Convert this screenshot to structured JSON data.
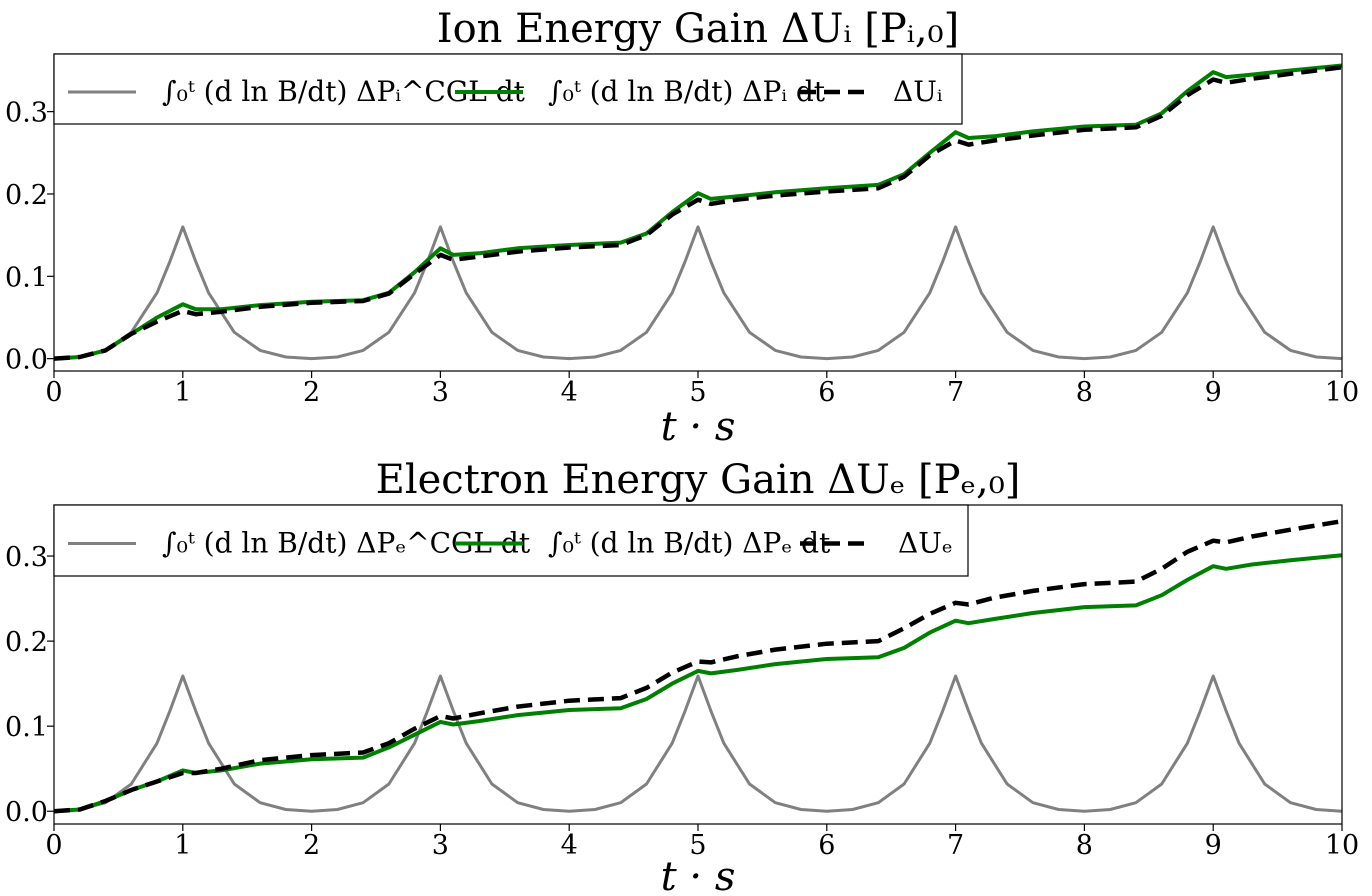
{
  "chart_data": [
    {
      "type": "line",
      "title": "Ion Energy Gain ΔUᵢ [Pᵢ,₀]",
      "xlabel": "t · s",
      "ylabel": "",
      "xlim": [
        0,
        10
      ],
      "ylim": [
        -0.015,
        0.37
      ],
      "xticks": [
        "0",
        "1",
        "2",
        "3",
        "4",
        "5",
        "6",
        "7",
        "8",
        "9",
        "10"
      ],
      "yticks": [
        "0.0",
        "0.1",
        "0.2",
        "0.3"
      ],
      "grid": false,
      "legend_position": "top-left",
      "series": [
        {
          "name": "∫₀ᵗ (d ln B/dt) ΔPᵢ^CGL dt",
          "color": "#808080",
          "style": "solid",
          "x": [
            0,
            0.2,
            0.4,
            0.6,
            0.8,
            0.9,
            1.0,
            1.1,
            1.2,
            1.4,
            1.6,
            1.8,
            2.0,
            2.2,
            2.4,
            2.6,
            2.8,
            2.9,
            3.0,
            3.1,
            3.2,
            3.4,
            3.6,
            3.8,
            4.0,
            4.2,
            4.4,
            4.6,
            4.8,
            4.9,
            5.0,
            5.1,
            5.2,
            5.4,
            5.6,
            5.8,
            6.0,
            6.2,
            6.4,
            6.6,
            6.8,
            6.9,
            7.0,
            7.1,
            7.2,
            7.4,
            7.6,
            7.8,
            8.0,
            8.2,
            8.4,
            8.6,
            8.8,
            8.9,
            9.0,
            9.1,
            9.2,
            9.4,
            9.6,
            9.8,
            10.0
          ],
          "y": [
            0.0,
            0.002,
            0.01,
            0.032,
            0.08,
            0.118,
            0.16,
            0.118,
            0.08,
            0.032,
            0.01,
            0.002,
            0.0,
            0.002,
            0.01,
            0.032,
            0.08,
            0.118,
            0.16,
            0.118,
            0.08,
            0.032,
            0.01,
            0.002,
            0.0,
            0.002,
            0.01,
            0.032,
            0.08,
            0.118,
            0.16,
            0.118,
            0.08,
            0.032,
            0.01,
            0.002,
            0.0,
            0.002,
            0.01,
            0.032,
            0.08,
            0.118,
            0.16,
            0.118,
            0.08,
            0.032,
            0.01,
            0.002,
            0.0,
            0.002,
            0.01,
            0.032,
            0.08,
            0.118,
            0.16,
            0.118,
            0.08,
            0.032,
            0.01,
            0.002,
            0.0
          ]
        },
        {
          "name": "∫₀ᵗ (d ln B/dt) ΔPᵢ dt",
          "color": "#008000",
          "style": "solid",
          "x": [
            0,
            0.2,
            0.4,
            0.6,
            0.8,
            1.0,
            1.1,
            1.3,
            1.6,
            2.0,
            2.4,
            2.6,
            2.8,
            3.0,
            3.1,
            3.3,
            3.6,
            4.0,
            4.4,
            4.6,
            4.8,
            5.0,
            5.1,
            5.3,
            5.6,
            6.0,
            6.4,
            6.6,
            6.8,
            7.0,
            7.1,
            7.3,
            7.6,
            8.0,
            8.4,
            8.6,
            8.8,
            9.0,
            9.1,
            9.3,
            9.6,
            10.0
          ],
          "y": [
            0.0,
            0.002,
            0.01,
            0.03,
            0.05,
            0.066,
            0.06,
            0.06,
            0.065,
            0.069,
            0.071,
            0.08,
            0.105,
            0.134,
            0.126,
            0.128,
            0.134,
            0.138,
            0.141,
            0.152,
            0.178,
            0.201,
            0.194,
            0.197,
            0.202,
            0.207,
            0.211,
            0.224,
            0.25,
            0.275,
            0.268,
            0.27,
            0.276,
            0.282,
            0.284,
            0.298,
            0.325,
            0.348,
            0.342,
            0.345,
            0.35,
            0.356
          ]
        },
        {
          "name": "ΔUᵢ",
          "color": "#000000",
          "style": "dashed",
          "x": [
            0,
            0.2,
            0.4,
            0.6,
            0.8,
            1.0,
            1.1,
            1.3,
            1.6,
            2.0,
            2.4,
            2.6,
            2.8,
            3.0,
            3.1,
            3.3,
            3.6,
            4.0,
            4.4,
            4.6,
            4.8,
            5.0,
            5.1,
            5.3,
            5.6,
            6.0,
            6.4,
            6.6,
            6.8,
            7.0,
            7.1,
            7.3,
            7.6,
            8.0,
            8.4,
            8.6,
            8.8,
            9.0,
            9.1,
            9.3,
            9.6,
            10.0
          ],
          "y": [
            0.0,
            0.002,
            0.01,
            0.03,
            0.045,
            0.058,
            0.054,
            0.057,
            0.063,
            0.068,
            0.07,
            0.079,
            0.103,
            0.126,
            0.12,
            0.124,
            0.13,
            0.135,
            0.138,
            0.15,
            0.175,
            0.193,
            0.188,
            0.193,
            0.198,
            0.203,
            0.207,
            0.221,
            0.247,
            0.265,
            0.26,
            0.265,
            0.271,
            0.278,
            0.281,
            0.295,
            0.32,
            0.339,
            0.335,
            0.34,
            0.346,
            0.354
          ]
        }
      ]
    },
    {
      "type": "line",
      "title": "Electron Energy Gain ΔUₑ [Pₑ,₀]",
      "xlabel": "t · s",
      "ylabel": "",
      "xlim": [
        0,
        10
      ],
      "ylim": [
        -0.015,
        0.36
      ],
      "xticks": [
        "0",
        "1",
        "2",
        "3",
        "4",
        "5",
        "6",
        "7",
        "8",
        "9",
        "10"
      ],
      "yticks": [
        "0.0",
        "0.1",
        "0.2",
        "0.3"
      ],
      "grid": false,
      "legend_position": "top-left",
      "series": [
        {
          "name": "∫₀ᵗ (d ln B/dt) ΔPₑ^CGL dt",
          "color": "#808080",
          "style": "solid",
          "x": [
            0,
            0.2,
            0.4,
            0.6,
            0.8,
            0.9,
            1.0,
            1.1,
            1.2,
            1.4,
            1.6,
            1.8,
            2.0,
            2.2,
            2.4,
            2.6,
            2.8,
            2.9,
            3.0,
            3.1,
            3.2,
            3.4,
            3.6,
            3.8,
            4.0,
            4.2,
            4.4,
            4.6,
            4.8,
            4.9,
            5.0,
            5.1,
            5.2,
            5.4,
            5.6,
            5.8,
            6.0,
            6.2,
            6.4,
            6.6,
            6.8,
            6.9,
            7.0,
            7.1,
            7.2,
            7.4,
            7.6,
            7.8,
            8.0,
            8.2,
            8.4,
            8.6,
            8.8,
            8.9,
            9.0,
            9.1,
            9.2,
            9.4,
            9.6,
            9.8,
            10.0
          ],
          "y": [
            0.0,
            0.002,
            0.01,
            0.032,
            0.08,
            0.118,
            0.159,
            0.118,
            0.08,
            0.032,
            0.01,
            0.002,
            0.0,
            0.002,
            0.01,
            0.032,
            0.08,
            0.118,
            0.159,
            0.118,
            0.08,
            0.032,
            0.01,
            0.002,
            0.0,
            0.002,
            0.01,
            0.032,
            0.08,
            0.118,
            0.159,
            0.118,
            0.08,
            0.032,
            0.01,
            0.002,
            0.0,
            0.002,
            0.01,
            0.032,
            0.08,
            0.118,
            0.159,
            0.118,
            0.08,
            0.032,
            0.01,
            0.002,
            0.0,
            0.002,
            0.01,
            0.032,
            0.08,
            0.118,
            0.159,
            0.118,
            0.08,
            0.032,
            0.01,
            0.002,
            0.0
          ]
        },
        {
          "name": "∫₀ᵗ (d ln B/dt) ΔPₑ dt",
          "color": "#008000",
          "style": "solid",
          "x": [
            0,
            0.2,
            0.4,
            0.6,
            0.8,
            1.0,
            1.1,
            1.3,
            1.6,
            2.0,
            2.4,
            2.6,
            2.8,
            3.0,
            3.1,
            3.3,
            3.6,
            4.0,
            4.4,
            4.6,
            4.8,
            5.0,
            5.1,
            5.3,
            5.6,
            6.0,
            6.4,
            6.6,
            6.8,
            7.0,
            7.1,
            7.3,
            7.6,
            8.0,
            8.4,
            8.6,
            8.8,
            9.0,
            9.1,
            9.3,
            9.6,
            10.0
          ],
          "y": [
            0.0,
            0.002,
            0.012,
            0.025,
            0.035,
            0.048,
            0.045,
            0.048,
            0.056,
            0.061,
            0.063,
            0.075,
            0.09,
            0.105,
            0.102,
            0.106,
            0.113,
            0.119,
            0.121,
            0.132,
            0.15,
            0.165,
            0.162,
            0.166,
            0.173,
            0.179,
            0.181,
            0.192,
            0.21,
            0.224,
            0.221,
            0.226,
            0.233,
            0.24,
            0.242,
            0.254,
            0.272,
            0.288,
            0.285,
            0.29,
            0.295,
            0.301
          ]
        },
        {
          "name": "ΔUₑ",
          "color": "#000000",
          "style": "dashed",
          "x": [
            0,
            0.2,
            0.4,
            0.6,
            0.8,
            1.0,
            1.1,
            1.3,
            1.6,
            2.0,
            2.4,
            2.6,
            2.8,
            3.0,
            3.1,
            3.3,
            3.6,
            4.0,
            4.4,
            4.6,
            4.8,
            5.0,
            5.1,
            5.3,
            5.6,
            6.0,
            6.4,
            6.6,
            6.8,
            7.0,
            7.1,
            7.3,
            7.6,
            8.0,
            8.4,
            8.6,
            8.8,
            9.0,
            9.1,
            9.3,
            9.6,
            10.0
          ],
          "y": [
            0.0,
            0.002,
            0.012,
            0.025,
            0.035,
            0.045,
            0.045,
            0.05,
            0.06,
            0.066,
            0.069,
            0.08,
            0.097,
            0.112,
            0.109,
            0.115,
            0.123,
            0.13,
            0.133,
            0.145,
            0.163,
            0.176,
            0.175,
            0.182,
            0.19,
            0.197,
            0.2,
            0.215,
            0.232,
            0.245,
            0.243,
            0.251,
            0.259,
            0.267,
            0.27,
            0.285,
            0.305,
            0.318,
            0.316,
            0.323,
            0.331,
            0.341
          ]
        }
      ]
    }
  ]
}
